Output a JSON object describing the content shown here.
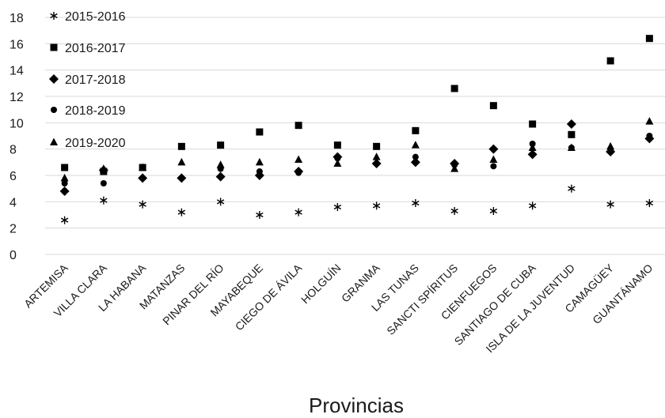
{
  "chart_data": {
    "type": "scatter",
    "xlabel": "Provincias",
    "ylabel": "",
    "ylim": [
      0,
      18
    ],
    "yticks": [
      0,
      2,
      4,
      6,
      8,
      10,
      12,
      14,
      16,
      18
    ],
    "grid": true,
    "legend_position": "top-left",
    "categories": [
      "ARTEMISA",
      "VILLA CLARA",
      "LA HABANA",
      "MATANZAS",
      "PINAR DEL RÍO",
      "MAYABEQUE",
      "CIEGO DE ÁVILA",
      "HOLGUÍN",
      "GRANMA",
      "LAS TUNAS",
      "SANCTI SPÍRITUS",
      "CIENFUEGOS",
      "SANTIAGO DE CUBA",
      "ISLA DE LA JUVENTUD",
      "CAMAGÜEY",
      "GUANTÁNAMO"
    ],
    "series": [
      {
        "name": "2015-2016",
        "marker": "asterisk",
        "values": [
          2.6,
          4.1,
          3.8,
          3.2,
          4.0,
          3.0,
          3.2,
          3.6,
          3.7,
          3.9,
          3.3,
          3.3,
          3.7,
          5.0,
          3.8,
          3.9
        ]
      },
      {
        "name": "2016-2017",
        "marker": "square",
        "values": [
          6.6,
          6.3,
          6.6,
          8.2,
          8.3,
          9.3,
          9.8,
          8.3,
          8.2,
          9.4,
          12.6,
          11.3,
          9.9,
          9.1,
          14.7,
          16.4
        ]
      },
      {
        "name": "2017-2018",
        "marker": "diamond",
        "values": [
          4.8,
          6.4,
          5.8,
          5.8,
          5.9,
          6.0,
          6.3,
          7.4,
          6.9,
          7.0,
          6.9,
          8.0,
          7.6,
          9.9,
          7.8,
          8.8
        ]
      },
      {
        "name": "2018-2019",
        "marker": "circle",
        "values": [
          5.4,
          5.4,
          5.8,
          5.8,
          6.5,
          6.3,
          6.2,
          7.3,
          6.9,
          7.4,
          6.8,
          6.7,
          8.4,
          8.1,
          7.8,
          9.0
        ]
      },
      {
        "name": "2019-2020",
        "marker": "triangle",
        "values": [
          5.8,
          6.5,
          6.6,
          7.0,
          6.8,
          7.0,
          7.2,
          6.9,
          7.4,
          8.3,
          6.5,
          7.2,
          8.1,
          8.1,
          8.2,
          10.1
        ]
      }
    ]
  }
}
